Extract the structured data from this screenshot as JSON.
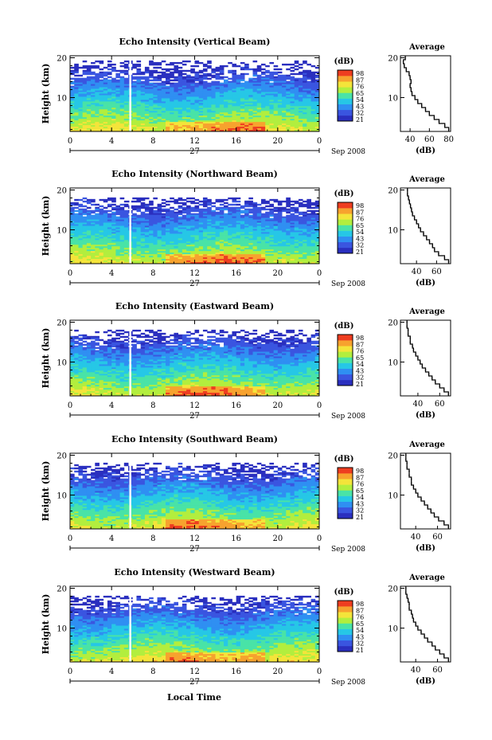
{
  "figure": {
    "x_title": "Local Time",
    "date_label": "Sep 2008",
    "day_label": "27",
    "colorbar_unit": "(dB)",
    "colorbar_ticks": [
      "98",
      "87",
      "76",
      "65",
      "54",
      "43",
      "32",
      "21"
    ],
    "colors": [
      "#2a2fbf",
      "#3a55e0",
      "#2f8ff2",
      "#26c7e6",
      "#49e3a7",
      "#b2ee3e",
      "#f4e43a",
      "#f7a22e",
      "#ee3d20"
    ]
  },
  "chart_data": [
    {
      "type": "heatmap",
      "title": "Echo Intensity (Vertical Beam)",
      "ylabel": "Height (km)",
      "xlabel": "Local Time",
      "x_ticks": [
        "0",
        "4",
        "8",
        "12",
        "16",
        "20",
        "0"
      ],
      "xlim": [
        0,
        24
      ],
      "y_ticks": [
        "20",
        "10"
      ],
      "ylim": [
        1.5,
        20.5
      ],
      "colorbar": {
        "label": "(dB)",
        "ticks": [
          "98",
          "87",
          "76",
          "65",
          "54",
          "43",
          "32",
          "21"
        ],
        "range": [
          21,
          98
        ]
      },
      "data_gap_hour": 5.8,
      "profile": {
        "title": "Average",
        "xlabel": "(dB)",
        "x_ticks": [
          "40",
          "60",
          "80"
        ],
        "xlim": [
          30,
          82
        ],
        "y_ticks": [
          "20",
          "10"
        ],
        "height": [
          2,
          3,
          4,
          5,
          6,
          7,
          8,
          9,
          10,
          11,
          12,
          13,
          14,
          15,
          16,
          17,
          18,
          19,
          20
        ],
        "values": [
          80,
          76,
          70,
          65,
          60,
          56,
          52,
          48,
          45,
          42,
          41,
          40,
          41,
          40,
          39,
          36,
          34,
          33,
          35
        ]
      }
    },
    {
      "type": "heatmap",
      "title": "Echo Intensity (Northward Beam)",
      "ylabel": "Height (km)",
      "xlabel": "Local Time",
      "x_ticks": [
        "0",
        "4",
        "8",
        "12",
        "16",
        "20",
        "0"
      ],
      "xlim": [
        0,
        24
      ],
      "y_ticks": [
        "20",
        "10"
      ],
      "ylim": [
        1.5,
        20.5
      ],
      "colorbar": {
        "label": "(dB)",
        "ticks": [
          "98",
          "87",
          "76",
          "65",
          "54",
          "43",
          "32",
          "21"
        ],
        "range": [
          21,
          98
        ]
      },
      "data_gap_hour": 5.8,
      "profile": {
        "title": "Average",
        "xlabel": "(dB)",
        "x_ticks": [
          "40",
          "60"
        ],
        "xlim": [
          24,
          74
        ],
        "y_ticks": [
          "20",
          "10"
        ],
        "height": [
          2,
          3,
          4,
          5,
          6,
          7,
          8,
          9,
          10,
          11,
          12,
          13,
          14,
          15,
          16,
          17,
          18,
          19,
          20
        ],
        "values": [
          72,
          68,
          62,
          58,
          56,
          53,
          50,
          47,
          44,
          42,
          40,
          38,
          36,
          35,
          34,
          33,
          32,
          31,
          31
        ]
      }
    },
    {
      "type": "heatmap",
      "title": "Echo Intensity (Eastward Beam)",
      "ylabel": "Height (km)",
      "xlabel": "Local Time",
      "x_ticks": [
        "0",
        "4",
        "8",
        "12",
        "16",
        "20",
        "0"
      ],
      "xlim": [
        0,
        24
      ],
      "y_ticks": [
        "20",
        "10"
      ],
      "ylim": [
        1.5,
        20.5
      ],
      "colorbar": {
        "label": "(dB)",
        "ticks": [
          "98",
          "87",
          "76",
          "65",
          "54",
          "43",
          "32",
          "21"
        ],
        "range": [
          21,
          98
        ]
      },
      "data_gap_hour": 5.8,
      "profile": {
        "title": "Average",
        "xlabel": "(dB)",
        "x_ticks": [
          "40",
          "60"
        ],
        "xlim": [
          24,
          70
        ],
        "y_ticks": [
          "20",
          "10"
        ],
        "height": [
          2,
          3,
          4,
          5,
          6,
          7,
          8,
          9,
          10,
          11,
          12,
          13,
          14,
          15,
          16,
          17,
          18,
          19,
          20
        ],
        "values": [
          68,
          64,
          60,
          56,
          53,
          50,
          47,
          44,
          42,
          40,
          38,
          36,
          35,
          33,
          33,
          31,
          31,
          30,
          30
        ]
      }
    },
    {
      "type": "heatmap",
      "title": "Echo Intensity (Southward Beam)",
      "ylabel": "Height (km)",
      "xlabel": "Local Time",
      "x_ticks": [
        "0",
        "4",
        "8",
        "12",
        "16",
        "20",
        "0"
      ],
      "xlim": [
        0,
        24
      ],
      "y_ticks": [
        "20",
        "10"
      ],
      "ylim": [
        1.5,
        20.5
      ],
      "colorbar": {
        "label": "(dB)",
        "ticks": [
          "98",
          "87",
          "76",
          "65",
          "54",
          "43",
          "32",
          "21"
        ],
        "range": [
          21,
          98
        ]
      },
      "data_gap_hour": 5.8,
      "profile": {
        "title": "Average",
        "xlabel": "(dB)",
        "x_ticks": [
          "40",
          "60"
        ],
        "xlim": [
          26,
          72
        ],
        "y_ticks": [
          "20",
          "10"
        ],
        "height": [
          2,
          3,
          4,
          5,
          6,
          7,
          8,
          9,
          10,
          11,
          12,
          13,
          14,
          15,
          16,
          17,
          18,
          19,
          20
        ],
        "values": [
          70,
          66,
          61,
          57,
          54,
          51,
          48,
          45,
          42,
          40,
          38,
          36,
          36,
          34,
          34,
          32,
          32,
          31,
          31
        ]
      }
    },
    {
      "type": "heatmap",
      "title": "Echo Intensity (Westward Beam)",
      "ylabel": "Height (km)",
      "xlabel": "Local Time",
      "x_ticks": [
        "0",
        "4",
        "8",
        "12",
        "16",
        "20",
        "0"
      ],
      "xlim": [
        0,
        24
      ],
      "y_ticks": [
        "20",
        "10"
      ],
      "ylim": [
        1.5,
        20.5
      ],
      "colorbar": {
        "label": "(dB)",
        "ticks": [
          "98",
          "87",
          "76",
          "65",
          "54",
          "43",
          "32",
          "21"
        ],
        "range": [
          21,
          98
        ]
      },
      "data_gap_hour": 5.8,
      "profile": {
        "title": "Average",
        "xlabel": "(dB)",
        "x_ticks": [
          "40",
          "60"
        ],
        "xlim": [
          26,
          72
        ],
        "y_ticks": [
          "20",
          "10"
        ],
        "height": [
          2,
          3,
          4,
          5,
          6,
          7,
          8,
          9,
          10,
          11,
          12,
          13,
          14,
          15,
          16,
          17,
          18,
          19,
          20
        ],
        "values": [
          70,
          66,
          62,
          58,
          55,
          51,
          48,
          45,
          42,
          40,
          38,
          37,
          36,
          34,
          34,
          33,
          32,
          31,
          31
        ]
      }
    }
  ]
}
